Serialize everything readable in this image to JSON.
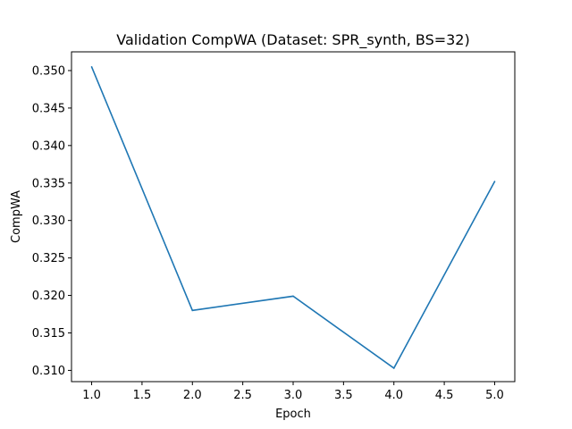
{
  "chart_data": {
    "type": "line",
    "title": "Validation CompWA (Dataset: SPR_synth, BS=32)",
    "xlabel": "Epoch",
    "ylabel": "CompWA",
    "xlim": [
      0.8,
      5.2
    ],
    "ylim": [
      0.3085,
      0.3525
    ],
    "x_ticks": [
      1.0,
      1.5,
      2.0,
      2.5,
      3.0,
      3.5,
      4.0,
      4.5,
      5.0
    ],
    "x_tick_labels": [
      "1.0",
      "1.5",
      "2.0",
      "2.5",
      "3.0",
      "3.5",
      "4.0",
      "4.5",
      "5.0"
    ],
    "y_ticks": [
      0.31,
      0.315,
      0.32,
      0.325,
      0.33,
      0.335,
      0.34,
      0.345,
      0.35
    ],
    "y_tick_labels": [
      "0.310",
      "0.315",
      "0.320",
      "0.325",
      "0.330",
      "0.335",
      "0.340",
      "0.345",
      "0.350"
    ],
    "grid": false,
    "series": [
      {
        "x": [
          1,
          2,
          3,
          4,
          5
        ],
        "values": [
          0.3505,
          0.318,
          0.3199,
          0.3103,
          0.3352
        ],
        "color": "#1f77b4"
      }
    ]
  }
}
